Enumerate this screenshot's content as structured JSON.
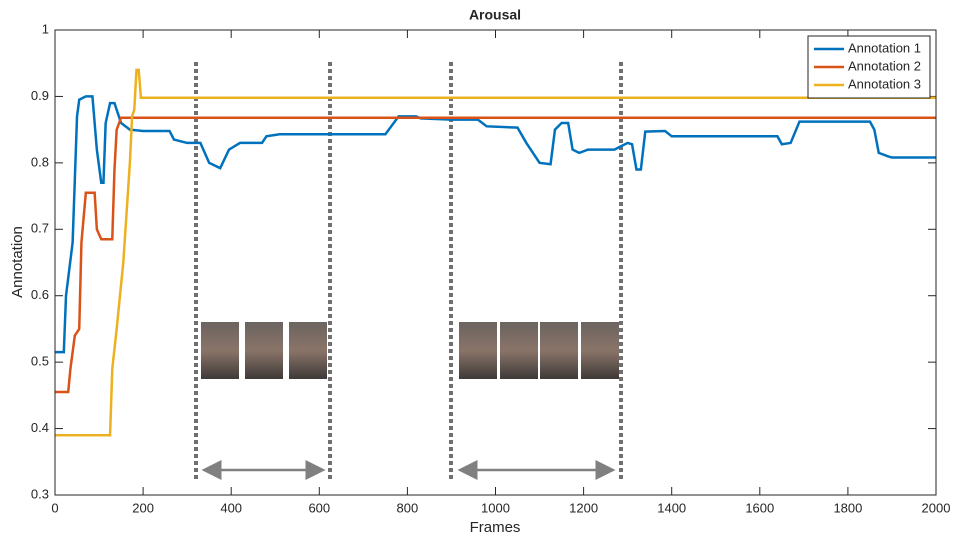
{
  "chart_data": {
    "type": "line",
    "title": "Arousal",
    "xlabel": "Frames",
    "ylabel": "Annotation",
    "xlim": [
      0,
      2000
    ],
    "xticks": [
      0,
      200,
      400,
      600,
      800,
      1000,
      1200,
      1400,
      1600,
      1800,
      2000
    ],
    "ylim": [
      0.3,
      1
    ],
    "yticks": [
      0.3,
      0.4,
      0.5,
      0.6,
      0.7,
      0.8,
      0.9,
      1
    ],
    "grid": false,
    "legend": "top-right",
    "series": [
      {
        "name": "Annotation 1",
        "color": "#0072bd",
        "x": [
          0,
          20,
          25,
          40,
          50,
          55,
          70,
          85,
          95,
          105,
          110,
          115,
          125,
          135,
          150,
          170,
          200,
          260,
          270,
          300,
          330,
          350,
          375,
          395,
          420,
          470,
          480,
          510,
          750,
          780,
          820,
          830,
          900,
          960,
          980,
          1050,
          1070,
          1100,
          1125,
          1135,
          1150,
          1165,
          1175,
          1190,
          1210,
          1270,
          1285,
          1300,
          1310,
          1320,
          1330,
          1340,
          1385,
          1400,
          1640,
          1650,
          1670,
          1690,
          1850,
          1860,
          1870,
          1890,
          1900,
          2000
        ],
        "values": [
          0.515,
          0.515,
          0.6,
          0.68,
          0.87,
          0.895,
          0.9,
          0.9,
          0.82,
          0.77,
          0.77,
          0.86,
          0.89,
          0.89,
          0.86,
          0.85,
          0.848,
          0.848,
          0.835,
          0.83,
          0.83,
          0.8,
          0.792,
          0.82,
          0.83,
          0.83,
          0.84,
          0.843,
          0.843,
          0.87,
          0.87,
          0.867,
          0.865,
          0.865,
          0.855,
          0.853,
          0.83,
          0.8,
          0.798,
          0.85,
          0.86,
          0.86,
          0.82,
          0.815,
          0.82,
          0.82,
          0.825,
          0.83,
          0.828,
          0.79,
          0.79,
          0.847,
          0.848,
          0.84,
          0.84,
          0.828,
          0.83,
          0.862,
          0.862,
          0.85,
          0.815,
          0.81,
          0.808,
          0.808
        ]
      },
      {
        "name": "Annotation 2",
        "color": "#d95319",
        "x": [
          0,
          30,
          35,
          45,
          55,
          60,
          70,
          90,
          95,
          105,
          130,
          135,
          140,
          150,
          2000
        ],
        "values": [
          0.455,
          0.455,
          0.49,
          0.54,
          0.55,
          0.68,
          0.755,
          0.755,
          0.7,
          0.685,
          0.685,
          0.79,
          0.85,
          0.868,
          0.868
        ]
      },
      {
        "name": "Annotation 3",
        "color": "#edb120",
        "x": [
          0,
          125,
          130,
          140,
          155,
          170,
          175,
          180,
          185,
          190,
          195,
          2000
        ],
        "values": [
          0.39,
          0.39,
          0.49,
          0.55,
          0.65,
          0.8,
          0.87,
          0.88,
          0.94,
          0.94,
          0.898,
          0.898
        ]
      }
    ]
  }
}
